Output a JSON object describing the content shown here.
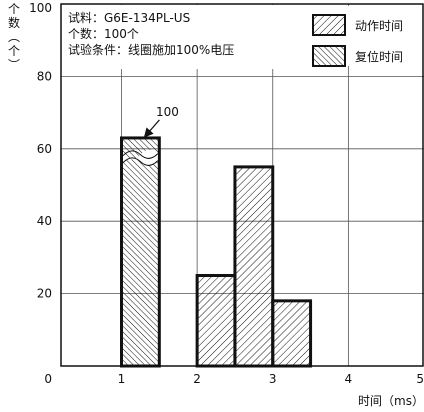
{
  "chart_data": {
    "type": "bar",
    "y_axis": {
      "label_chars": [
        "个",
        "数",
        "︵",
        "个",
        "︶"
      ],
      "ticks": [
        0,
        20,
        40,
        60,
        80,
        100
      ],
      "ylim": [
        0,
        100
      ]
    },
    "x_axis": {
      "label": "时间（ms）",
      "ticks": [
        1,
        2,
        3,
        4,
        5
      ],
      "xlim": [
        0.2,
        5
      ]
    },
    "info_lines": [
      "试料：G6E-134PL-US",
      "个数：100个",
      "试验条件：线圈施加100%电压"
    ],
    "legend": [
      {
        "name": "动作时间",
        "pattern": "hatch-right"
      },
      {
        "name": "复位时间",
        "pattern": "hatch-left"
      }
    ],
    "series": [
      {
        "name": "动作时间",
        "pattern": "hatch-right",
        "bins": [
          {
            "x0": 2.0,
            "x1": 2.5,
            "value": 25
          },
          {
            "x0": 2.5,
            "x1": 3.0,
            "value": 55
          },
          {
            "x0": 3.0,
            "x1": 3.5,
            "value": 18
          }
        ]
      },
      {
        "name": "复位时间",
        "pattern": "hatch-left",
        "bins": [
          {
            "x0": 1.0,
            "x1": 1.5,
            "value": 100,
            "drawn_value": 63,
            "axis_break_at": 57
          }
        ]
      }
    ],
    "annotations": [
      {
        "text": "100",
        "points_to": {
          "x": 1.25,
          "y": 63
        }
      }
    ],
    "grid": true,
    "legend_position": "top-right"
  }
}
